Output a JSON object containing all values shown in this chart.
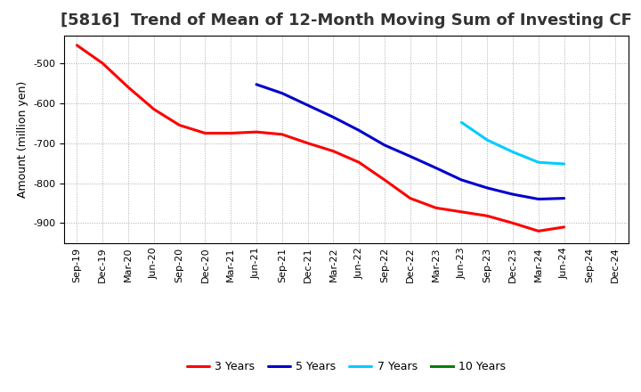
{
  "title": "[5816]  Trend of Mean of 12-Month Moving Sum of Investing CF",
  "ylabel": "Amount (million yen)",
  "ylim": [
    -950,
    -430
  ],
  "yticks": [
    -900,
    -800,
    -700,
    -600,
    -500
  ],
  "background_color": "#ffffff",
  "grid_color": "#aaaaaa",
  "series": {
    "3 Years": {
      "color": "#ff0000",
      "x": [
        "Sep-19",
        "Dec-19",
        "Mar-20",
        "Jun-20",
        "Sep-20",
        "Dec-20",
        "Mar-21",
        "Jun-21",
        "Sep-21",
        "Dec-21",
        "Mar-22",
        "Jun-22",
        "Sep-22",
        "Dec-22",
        "Mar-23",
        "Jun-23",
        "Sep-23",
        "Dec-23",
        "Mar-24",
        "Jun-24"
      ],
      "y": [
        -455,
        -500,
        -560,
        -615,
        -655,
        -675,
        -675,
        -672,
        -678,
        -700,
        -720,
        -748,
        -792,
        -838,
        -862,
        -872,
        -882,
        -900,
        -920,
        -910
      ]
    },
    "5 Years": {
      "color": "#0000cc",
      "x": [
        "Jun-21",
        "Sep-21",
        "Dec-21",
        "Mar-22",
        "Jun-22",
        "Sep-22",
        "Dec-22",
        "Mar-23",
        "Jun-23",
        "Sep-23",
        "Dec-23",
        "Mar-24",
        "Jun-24"
      ],
      "y": [
        -553,
        -575,
        -605,
        -635,
        -668,
        -705,
        -733,
        -762,
        -792,
        -812,
        -828,
        -840,
        -838
      ]
    },
    "7 Years": {
      "color": "#00ccff",
      "x": [
        "Jun-23",
        "Sep-23",
        "Dec-23",
        "Mar-24",
        "Jun-24"
      ],
      "y": [
        -648,
        -692,
        -722,
        -748,
        -752
      ]
    },
    "10 Years": {
      "color": "#008000",
      "x": [],
      "y": []
    }
  },
  "x_all": [
    "Sep-19",
    "Dec-19",
    "Mar-20",
    "Jun-20",
    "Sep-20",
    "Dec-20",
    "Mar-21",
    "Jun-21",
    "Sep-21",
    "Dec-21",
    "Mar-22",
    "Jun-22",
    "Sep-22",
    "Dec-22",
    "Mar-23",
    "Jun-23",
    "Sep-23",
    "Dec-23",
    "Mar-24",
    "Jun-24",
    "Sep-24",
    "Dec-24"
  ],
  "legend_order": [
    "3 Years",
    "5 Years",
    "7 Years",
    "10 Years"
  ],
  "title_fontsize": 13,
  "title_color": "#333333",
  "label_fontsize": 9,
  "tick_fontsize": 8,
  "legend_fontsize": 9,
  "linewidth": 2.2
}
